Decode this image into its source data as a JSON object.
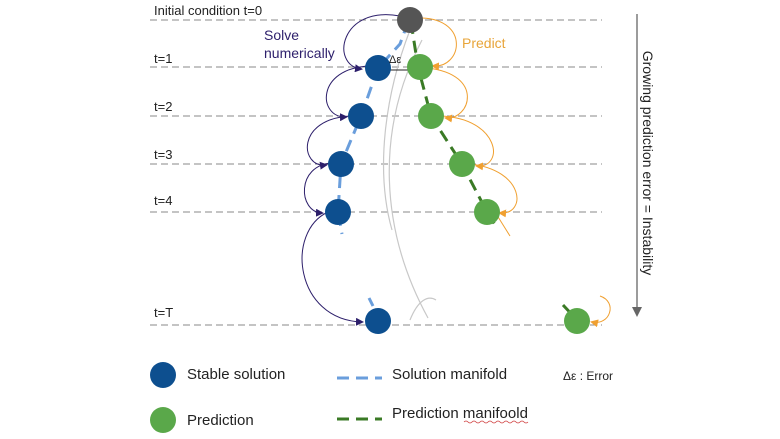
{
  "colors": {
    "stable": "#0d4f8f",
    "prediction": "#5aa84a",
    "initial": "#555555",
    "solution_manifold": "#6a9edc",
    "prediction_manifold": "#3a7a25",
    "solve_arrow": "#2d1f6b",
    "predict_arrow": "#f0a030",
    "timeline": "#888888",
    "gray_curve": "#c8c8c8",
    "text": "#222222",
    "solve_text": "#2d1f6b",
    "predict_text": "#e8a53a"
  },
  "time_labels": [
    "Initial condition t=0",
    "t=1",
    "t=2",
    "t=3",
    "t=4",
    "t=T"
  ],
  "annotations": {
    "solve_line1": "Solve",
    "solve_line2": "numerically",
    "predict": "Predict",
    "delta_eps": "Δε",
    "side_arrow": "Growing prediction error = Instability"
  },
  "legend": {
    "stable": "Stable solution",
    "prediction": "Prediction",
    "solution_manifold": "Solution manifold",
    "prediction_manifold": "Prediction manifoold",
    "error": "Δε : Error"
  }
}
